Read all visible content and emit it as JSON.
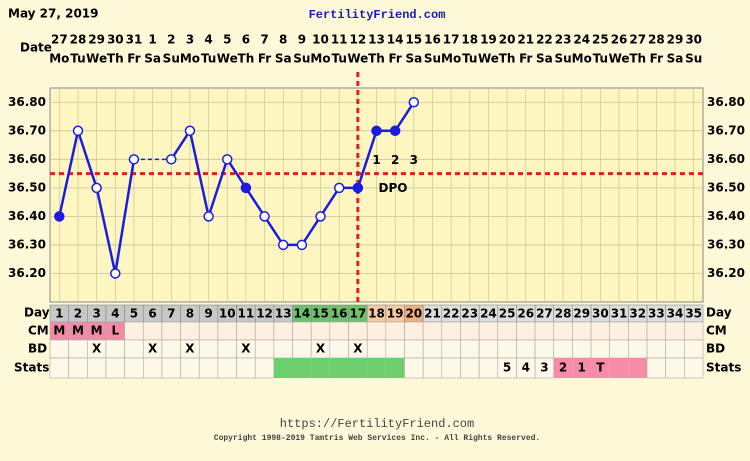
{
  "chart_data": {
    "type": "line",
    "date": "May 27, 2019",
    "title": "FertilityFriend.com",
    "date_label": "Date",
    "day_label": "Day",
    "cm_label": "CM",
    "bd_label": "BD",
    "stats_label": "Stats",
    "categories": [
      1,
      2,
      3,
      4,
      5,
      6,
      7,
      8,
      9,
      10,
      11,
      12,
      13,
      14,
      15,
      16,
      17,
      18,
      19,
      20,
      21,
      22,
      23,
      24,
      25,
      26,
      27,
      28,
      29,
      30,
      31,
      32,
      33,
      34,
      35
    ],
    "dates": [
      27,
      28,
      29,
      30,
      31,
      1,
      2,
      3,
      4,
      5,
      6,
      7,
      8,
      9,
      10,
      11,
      12,
      13,
      14,
      15,
      16,
      17,
      18,
      19,
      20,
      21,
      22,
      23,
      24,
      25,
      26,
      27,
      28,
      29,
      30
    ],
    "weekdays": [
      "Mo",
      "Tu",
      "We",
      "Th",
      "Fr",
      "Sa",
      "Su",
      "Mo",
      "Tu",
      "We",
      "Th",
      "Fr",
      "Sa",
      "Su",
      "Mo",
      "Tu",
      "We",
      "Th",
      "Fr",
      "Sa",
      "Su",
      "Mo",
      "Tu",
      "We",
      "Th",
      "Fr",
      "Sa",
      "Su",
      "Mo",
      "Tu",
      "We",
      "Th",
      "Fr",
      "Sa",
      "Su"
    ],
    "values": [
      36.4,
      36.7,
      36.5,
      36.2,
      36.6,
      null,
      36.6,
      36.7,
      36.4,
      36.6,
      36.5,
      36.4,
      36.3,
      36.3,
      36.4,
      36.5,
      36.5,
      36.7,
      36.7,
      36.8,
      null,
      null,
      null,
      null,
      null,
      null,
      null,
      null,
      null,
      null,
      null,
      null,
      null,
      null,
      null
    ],
    "filled": [
      true,
      false,
      false,
      false,
      false,
      null,
      false,
      false,
      false,
      false,
      true,
      false,
      false,
      false,
      false,
      false,
      true,
      true,
      true,
      false,
      null,
      null,
      null,
      null,
      null,
      null,
      null,
      null,
      null,
      null,
      null,
      null,
      null,
      null,
      null
    ],
    "color": "#1c1ce0",
    "ylim": [
      36.1,
      36.85
    ],
    "yticks": [
      {
        "value": 36.2,
        "label": "36.20"
      },
      {
        "value": 36.3,
        "label": "36.30"
      },
      {
        "value": 36.4,
        "label": "36.40"
      },
      {
        "value": 36.5,
        "label": "36.50"
      },
      {
        "value": 36.6,
        "label": "36.60"
      },
      {
        "value": 36.7,
        "label": "36.70"
      },
      {
        "value": 36.8,
        "label": "36.80"
      }
    ],
    "grid": true,
    "coverline": 36.55,
    "coverline_color": "#e02020",
    "ovulation_day": 17,
    "dpo_labels": [
      1,
      2,
      3
    ],
    "dpo_text": "DPO",
    "day_colors": [
      "#c8c8c8",
      "#c8c8c8",
      "#c8c8c8",
      "#c8c8c8",
      "#c8c8c8",
      "#c8c8c8",
      "#c8c8c8",
      "#c8c8c8",
      "#c8c8c8",
      "#c8c8c8",
      "#c8c8c8",
      "#c8c8c8",
      "#c8c8c8",
      "#6cc36c",
      "#6cc36c",
      "#6cc36c",
      "#6cc36c",
      "#f8caa0",
      "#f8caa0",
      "#f3b07a",
      "#dedede",
      "#dedede",
      "#dedede",
      "#dedede",
      "#dedede",
      "#dedede",
      "#dedede",
      "#dedede",
      "#dedede",
      "#dedede",
      "#dedede",
      "#dedede",
      "#dedede",
      "#dedede",
      "#dedede"
    ],
    "cm": [
      "M",
      "M",
      "M",
      "L",
      null,
      null,
      null,
      null,
      null,
      null,
      null,
      null,
      null,
      null,
      null,
      null,
      null,
      null,
      null,
      null,
      null,
      null,
      null,
      null,
      null,
      null,
      null,
      null,
      null,
      null,
      null,
      null,
      null,
      null,
      null
    ],
    "cm_color": "#f28ca6",
    "bd": [
      null,
      null,
      "X",
      null,
      null,
      "X",
      null,
      "X",
      null,
      null,
      "X",
      null,
      null,
      null,
      "X",
      null,
      "X",
      null,
      null,
      null,
      null,
      null,
      null,
      null,
      null,
      null,
      null,
      null,
      null,
      null,
      null,
      null,
      null,
      null,
      null
    ],
    "stats": [
      null,
      null,
      null,
      null,
      null,
      null,
      null,
      null,
      null,
      null,
      null,
      null,
      null,
      null,
      null,
      null,
      null,
      null,
      null,
      null,
      null,
      null,
      null,
      null,
      "5",
      "4",
      "3",
      "2",
      "1",
      "T",
      null,
      null,
      null,
      null,
      null
    ],
    "stats_colors": [
      null,
      null,
      null,
      null,
      null,
      null,
      null,
      null,
      null,
      null,
      null,
      null,
      "#6dcf6d",
      "#6dcf6d",
      "#6dcf6d",
      "#6dcf6d",
      "#6dcf6d",
      "#6dcf6d",
      "#6dcf6d",
      null,
      null,
      null,
      null,
      null,
      null,
      null,
      null,
      "#f58ca8",
      "#f58ca8",
      "#f58ca8",
      "#f58ca8",
      "#f58ca8",
      null,
      null,
      null
    ],
    "footer_url": "https://FertilityFriend.com",
    "copyright": "Copyright 1998-2019 Tamtris Web Services Inc. - All Rights Reserved."
  }
}
